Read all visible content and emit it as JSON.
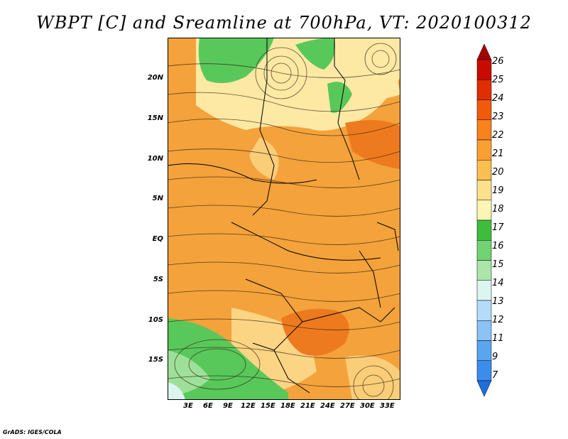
{
  "title": "WBPT [C] and Sreamline at 700hPa, VT: 2020100312",
  "footer": "GrADS: IGES/COLA",
  "x_ticks": [
    "3E",
    "6E",
    "9E",
    "12E",
    "15E",
    "18E",
    "21E",
    "24E",
    "27E",
    "30E",
    "33E"
  ],
  "y_ticks": [
    "20N",
    "15N",
    "10N",
    "5N",
    "EQ",
    "5S",
    "10S",
    "15S"
  ],
  "colorbar": {
    "labels": [
      "26",
      "25",
      "24",
      "23",
      "22",
      "21",
      "20",
      "19",
      "18",
      "17",
      "16",
      "15",
      "14",
      "13",
      "12",
      "11",
      "9",
      "7"
    ],
    "colors": [
      "#a50000",
      "#c80a00",
      "#e12d00",
      "#f05a0a",
      "#f7821e",
      "#faa032",
      "#fbbf50",
      "#fde18a",
      "#fdf5b4",
      "#3cbe3c",
      "#73d273",
      "#aae6aa",
      "#dcf5f0",
      "#b4dcfa",
      "#8cc3f5",
      "#5aa5f0",
      "#3c8ceb",
      "#1e6edc"
    ]
  },
  "legend_colors": {
    "land_warm": "#f4a23b",
    "land_hot": "#ee7a1f",
    "green": "#58c85a",
    "pale": "#fde9a4"
  }
}
